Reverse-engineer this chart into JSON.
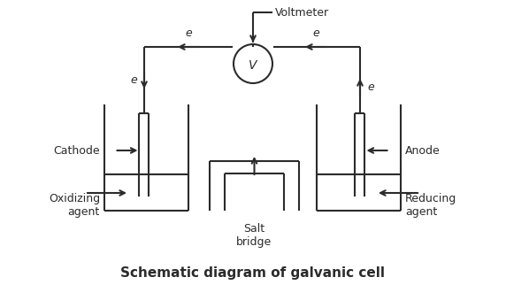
{
  "title": "Schematic diagram of galvanic cell",
  "title_fontsize": 11,
  "title_fontweight": "bold",
  "figsize": [
    5.72,
    3.22
  ],
  "dpi": 100,
  "labels": {
    "voltmeter": "Voltmeter",
    "cathode": "Cathode",
    "anode": "Anode",
    "oxidizing_agent": "Oxidizing\nagent",
    "reducing_agent": "Reducing\nagent",
    "salt_bridge": "Salt\nbridge",
    "e": "e"
  },
  "colors": {
    "line": "#2b2b2b",
    "text": "#2b2b2b",
    "background": "#ffffff"
  }
}
